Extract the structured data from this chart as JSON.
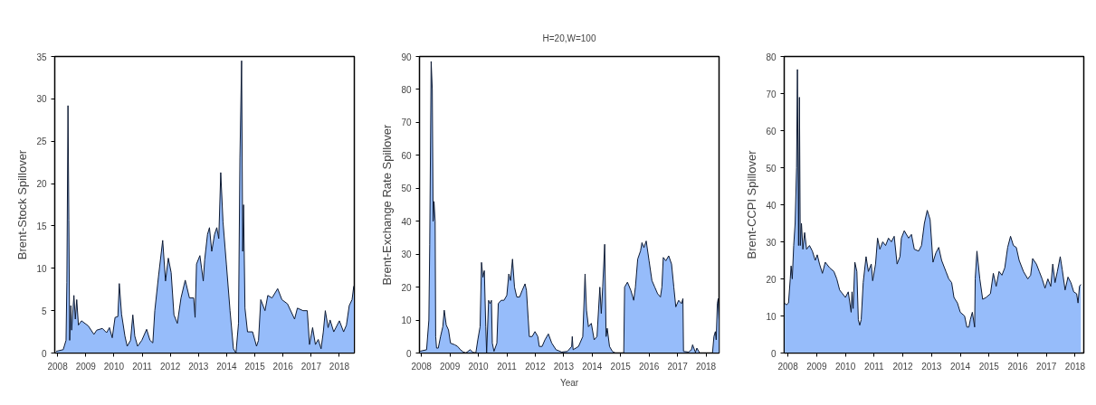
{
  "chart_data": [
    {
      "type": "area",
      "ylabel": "Brent-Stock Spillover",
      "xlim": [
        2007.9,
        2018.53
      ],
      "ylim": [
        0,
        35
      ],
      "xticks": [
        2008,
        2009,
        2010,
        2011,
        2012,
        2013,
        2014,
        2015,
        2016,
        2017,
        2018
      ],
      "yticks": [
        0,
        5,
        10,
        15,
        20,
        25,
        30,
        35
      ],
      "grid": false,
      "x": [
        2007.95,
        2008.2,
        2008.3,
        2008.33,
        2008.37,
        2008.4,
        2008.43,
        2008.47,
        2008.5,
        2008.58,
        2008.63,
        2008.68,
        2008.74,
        2008.85,
        2009.09,
        2009.29,
        2009.39,
        2009.59,
        2009.74,
        2009.84,
        2009.94,
        2010.04,
        2010.14,
        2010.19,
        2010.27,
        2010.39,
        2010.47,
        2010.59,
        2010.67,
        2010.74,
        2010.84,
        2010.99,
        2011.16,
        2011.28,
        2011.38,
        2011.45,
        2011.58,
        2011.73,
        2011.83,
        2011.93,
        2012.03,
        2012.13,
        2012.25,
        2012.38,
        2012.53,
        2012.68,
        2012.83,
        2012.88,
        2012.93,
        2013.05,
        2013.17,
        2013.22,
        2013.32,
        2013.39,
        2013.47,
        2013.57,
        2013.65,
        2013.72,
        2013.79,
        2013.87,
        2013.99,
        2014.12,
        2014.24,
        2014.33,
        2014.42,
        2014.47,
        2014.53,
        2014.57,
        2014.6,
        2014.65,
        2014.74,
        2014.92,
        2015.06,
        2015.13,
        2015.21,
        2015.36,
        2015.46,
        2015.61,
        2015.81,
        2015.96,
        2016.16,
        2016.41,
        2016.51,
        2016.71,
        2016.86,
        2016.94,
        2017.05,
        2017.15,
        2017.25,
        2017.35,
        2017.43,
        2017.5,
        2017.6,
        2017.67,
        2017.8,
        2018.0,
        2018.15,
        2018.25,
        2018.35,
        2018.45,
        2018.51
      ],
      "series": [
        {
          "color": "#96bcfa",
          "values": [
            0.2,
            0.4,
            1.5,
            8.3,
            29.2,
            15.7,
            1.5,
            5.6,
            2.7,
            6.8,
            4,
            6.3,
            3.3,
            3.8,
            3.2,
            2.2,
            2.7,
            2.9,
            2.4,
            3.0,
            1.8,
            4.2,
            4.3,
            8.2,
            4.6,
            2.0,
            0.8,
            1.5,
            4.5,
            2.0,
            0.8,
            1.5,
            2.8,
            1.5,
            1.2,
            5.0,
            9.0,
            13.3,
            8.5,
            11.2,
            9.5,
            4.5,
            3.5,
            6.5,
            8.6,
            6.5,
            6.5,
            4.2,
            10.5,
            11.5,
            8.5,
            11.0,
            14.0,
            14.8,
            12.0,
            14.0,
            14.8,
            13.5,
            21.3,
            15.5,
            10.5,
            5.0,
            0.5,
            0.0,
            3.5,
            23,
            34.5,
            12,
            17.5,
            5.3,
            2.5,
            2.5,
            0.8,
            1.5,
            6.3,
            5.0,
            6.8,
            6.5,
            7.6,
            6.3,
            5.8,
            4.0,
            5.3,
            5.0,
            5.0,
            1.0,
            3.0,
            1.0,
            1.6,
            0.5,
            2.5,
            5.0,
            3.0,
            3.9,
            2.5,
            3.8,
            2.5,
            3.3,
            5.6,
            6.3,
            7.9
          ]
        }
      ]
    },
    {
      "type": "area",
      "title": "H=20,W=100",
      "xlabel": "Year",
      "ylabel": "Brent-Exchange Rate Spillover",
      "xlim": [
        2007.93,
        2018.46
      ],
      "ylim": [
        0,
        90
      ],
      "xticks": [
        2008,
        2009,
        2010,
        2011,
        2012,
        2013,
        2014,
        2015,
        2016,
        2017,
        2018
      ],
      "yticks": [
        0,
        10,
        20,
        30,
        40,
        50,
        60,
        70,
        80,
        90
      ],
      "grid": false,
      "x": [
        2007.93,
        2008.18,
        2008.26,
        2008.29,
        2008.34,
        2008.38,
        2008.41,
        2008.44,
        2008.48,
        2008.5,
        2008.53,
        2008.59,
        2008.67,
        2008.75,
        2008.8,
        2008.87,
        2008.95,
        2009.02,
        2009.17,
        2009.27,
        2009.37,
        2009.47,
        2009.56,
        2009.71,
        2009.81,
        2009.91,
        2009.98,
        2010.06,
        2010.11,
        2010.16,
        2010.21,
        2010.26,
        2010.29,
        2010.36,
        2010.41,
        2010.46,
        2010.49,
        2010.55,
        2010.65,
        2010.7,
        2010.8,
        2010.9,
        2011.0,
        2011.07,
        2011.13,
        2011.2,
        2011.27,
        2011.35,
        2011.45,
        2011.54,
        2011.64,
        2011.69,
        2011.79,
        2011.89,
        2011.99,
        2012.09,
        2012.14,
        2012.24,
        2012.34,
        2012.46,
        2012.58,
        2012.73,
        2012.93,
        2013.13,
        2013.28,
        2013.3,
        2013.33,
        2013.52,
        2013.67,
        2013.75,
        2013.8,
        2013.87,
        2013.97,
        2014.07,
        2014.17,
        2014.27,
        2014.32,
        2014.37,
        2014.44,
        2014.49,
        2014.53,
        2014.61,
        2014.71,
        2014.81,
        2015.11,
        2015.14,
        2015.24,
        2015.36,
        2015.46,
        2015.52,
        2015.6,
        2015.7,
        2015.75,
        2015.82,
        2015.9,
        2016.0,
        2016.1,
        2016.2,
        2016.3,
        2016.4,
        2016.45,
        2016.5,
        2016.59,
        2016.69,
        2016.79,
        2016.87,
        2016.94,
        2017.04,
        2017.14,
        2017.19,
        2017.21,
        2017.39,
        2017.49,
        2017.53,
        2017.63,
        2017.68,
        2017.78,
        2018.23,
        2018.28,
        2018.33,
        2018.36,
        2018.4,
        2018.43,
        2018.46
      ],
      "series": [
        {
          "color": "#96bcfa",
          "values": [
            0.5,
            1.0,
            10,
            33,
            88.5,
            80,
            40,
            46,
            40,
            5,
            1.5,
            1.5,
            5,
            8,
            13,
            8.5,
            7,
            3,
            2.5,
            2,
            1,
            0.3,
            0,
            1,
            0.2,
            0,
            4,
            8,
            27.5,
            23,
            25,
            8,
            0,
            16,
            15,
            16,
            3,
            0.5,
            3,
            15,
            16,
            16,
            17.5,
            24,
            22,
            28.5,
            20,
            17,
            17,
            19,
            21,
            19,
            5,
            5,
            6.5,
            5,
            2,
            2,
            4,
            5.8,
            3,
            1,
            0.3,
            0.5,
            2,
            5,
            1,
            2,
            5,
            24,
            13,
            8,
            9,
            4,
            5,
            20,
            12,
            20,
            33,
            5,
            7.5,
            2,
            0.5,
            0,
            0,
            20,
            21.5,
            19,
            16,
            20,
            28.5,
            31,
            33.5,
            32,
            34,
            28,
            22,
            20,
            18,
            17,
            20,
            29,
            28,
            29.5,
            27,
            20,
            14,
            16,
            15,
            16.5,
            0.5,
            0.3,
            1,
            2.5,
            0.2,
            1.5,
            0,
            0,
            5,
            6.5,
            4,
            15,
            16.5,
            10
          ]
        }
      ]
    },
    {
      "type": "area",
      "ylabel": "Brent-CCPI Spillover",
      "xlim": [
        2007.87,
        2018.3
      ],
      "ylim": [
        0,
        80
      ],
      "xticks": [
        2008,
        2009,
        2010,
        2011,
        2012,
        2013,
        2014,
        2015,
        2016,
        2017,
        2018
      ],
      "yticks": [
        0,
        10,
        20,
        30,
        40,
        50,
        60,
        70,
        80
      ],
      "grid": false,
      "x": [
        2007.87,
        2007.95,
        2008.02,
        2008.08,
        2008.11,
        2008.15,
        2008.2,
        2008.25,
        2008.3,
        2008.33,
        2008.37,
        2008.4,
        2008.43,
        2008.47,
        2008.52,
        2008.58,
        2008.65,
        2008.75,
        2008.85,
        2008.95,
        2009.02,
        2009.1,
        2009.2,
        2009.3,
        2009.45,
        2009.6,
        2009.7,
        2009.8,
        2009.9,
        2010.0,
        2010.1,
        2010.2,
        2010.23,
        2010.27,
        2010.33,
        2010.4,
        2010.45,
        2010.5,
        2010.55,
        2010.62,
        2010.72,
        2010.8,
        2010.9,
        2010.95,
        2011.05,
        2011.12,
        2011.2,
        2011.3,
        2011.4,
        2011.5,
        2011.6,
        2011.7,
        2011.8,
        2011.9,
        2011.95,
        2012.05,
        2012.2,
        2012.3,
        2012.4,
        2012.55,
        2012.65,
        2012.75,
        2012.85,
        2012.95,
        2013.05,
        2013.15,
        2013.25,
        2013.35,
        2013.5,
        2013.6,
        2013.7,
        2013.78,
        2013.9,
        2014.0,
        2014.15,
        2014.23,
        2014.3,
        2014.35,
        2014.42,
        2014.5,
        2014.52,
        2014.58,
        2014.68,
        2014.78,
        2014.9,
        2015.05,
        2015.15,
        2015.25,
        2015.35,
        2015.45,
        2015.55,
        2015.65,
        2015.75,
        2015.85,
        2015.95,
        2016.05,
        2016.2,
        2016.35,
        2016.45,
        2016.52,
        2016.65,
        2016.75,
        2016.85,
        2016.95,
        2017.05,
        2017.15,
        2017.22,
        2017.3,
        2017.38,
        2017.48,
        2017.55,
        2017.65,
        2017.75,
        2017.85,
        2017.95,
        2018.05,
        2018.1,
        2018.15,
        2018.2
      ],
      "series": [
        {
          "color": "#96bcfa",
          "values": [
            13.5,
            13,
            13.5,
            20,
            23.5,
            20,
            29,
            35,
            50,
            76.5,
            29,
            69,
            29,
            35,
            28,
            32.5,
            28,
            29,
            27.5,
            25,
            26.5,
            24,
            21.5,
            24.5,
            23,
            22,
            20,
            17,
            16,
            15,
            16.5,
            11,
            16.5,
            12,
            24.5,
            22,
            9,
            7.5,
            9,
            19,
            26,
            22,
            24,
            19.5,
            24,
            31,
            28,
            30,
            29,
            31,
            30,
            31.5,
            24,
            26,
            31,
            33,
            31,
            32,
            28,
            27.5,
            29,
            35,
            38.5,
            36,
            24.5,
            27,
            28.5,
            25,
            22,
            20,
            19,
            15,
            13.5,
            11,
            10,
            7,
            7,
            9,
            11,
            7,
            20,
            27.5,
            20,
            14.5,
            15,
            16,
            21.5,
            18,
            22,
            21,
            23,
            28.5,
            31.5,
            29,
            28.5,
            25,
            22,
            20,
            21,
            25.5,
            24,
            22,
            20,
            17.5,
            20,
            18,
            24,
            19,
            22,
            26,
            22.5,
            17,
            20.5,
            19,
            16.5,
            16,
            13.5,
            18,
            18.5
          ]
        }
      ]
    }
  ]
}
